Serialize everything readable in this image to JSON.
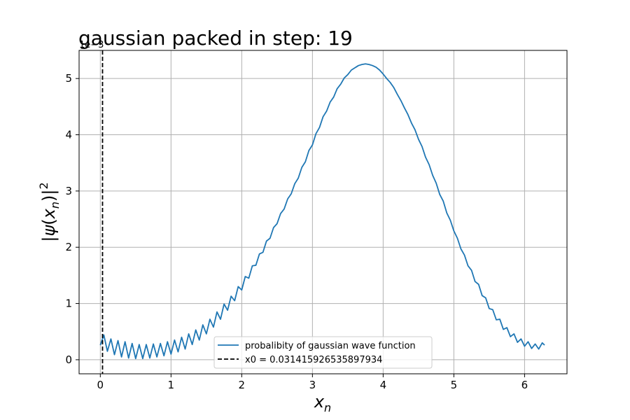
{
  "chart_data": {
    "type": "line",
    "title": "gaussian packed in step: 19",
    "xlabel": "x_n",
    "ylabel": "|ψ(x_n)|^2",
    "y_offset_label": "1e−3",
    "xlim": [
      -0.3,
      6.6
    ],
    "ylim": [
      -0.25,
      5.5
    ],
    "xticks": [
      0,
      1,
      2,
      3,
      4,
      5,
      6
    ],
    "yticks": [
      0,
      1,
      2,
      3,
      4,
      5
    ],
    "grid": true,
    "legend_position": "lower-center",
    "series": [
      {
        "name": "probalibity of gaussian wave function",
        "color": "#1f77b4",
        "style": "solid",
        "x": [
          0.0,
          0.05,
          0.1,
          0.15,
          0.2,
          0.25,
          0.3,
          0.35,
          0.4,
          0.45,
          0.5,
          0.55,
          0.6,
          0.65,
          0.7,
          0.75,
          0.8,
          0.85,
          0.9,
          0.95,
          1.0,
          1.05,
          1.1,
          1.15,
          1.2,
          1.25,
          1.3,
          1.35,
          1.4,
          1.45,
          1.5,
          1.55,
          1.6,
          1.65,
          1.7,
          1.75,
          1.8,
          1.85,
          1.9,
          1.95,
          2.0,
          2.05,
          2.1,
          2.15,
          2.2,
          2.25,
          2.3,
          2.35,
          2.4,
          2.45,
          2.5,
          2.55,
          2.6,
          2.65,
          2.7,
          2.75,
          2.8,
          2.85,
          2.9,
          2.95,
          3.0,
          3.05,
          3.1,
          3.15,
          3.2,
          3.25,
          3.3,
          3.35,
          3.4,
          3.45,
          3.5,
          3.55,
          3.6,
          3.65,
          3.7,
          3.75,
          3.8,
          3.85,
          3.9,
          3.95,
          4.0,
          4.05,
          4.1,
          4.15,
          4.2,
          4.25,
          4.3,
          4.35,
          4.4,
          4.45,
          4.5,
          4.55,
          4.6,
          4.65,
          4.7,
          4.75,
          4.8,
          4.85,
          4.9,
          4.95,
          5.0,
          5.05,
          5.1,
          5.15,
          5.2,
          5.25,
          5.3,
          5.35,
          5.4,
          5.45,
          5.5,
          5.55,
          5.6,
          5.65,
          5.7,
          5.75,
          5.8,
          5.85,
          5.9,
          5.95,
          6.0,
          6.05,
          6.1,
          6.15,
          6.2,
          6.25,
          6.283
        ],
        "y": [
          0.26,
          0.44,
          0.15,
          0.37,
          0.09,
          0.34,
          0.05,
          0.32,
          0.03,
          0.29,
          0.02,
          0.27,
          0.02,
          0.27,
          0.03,
          0.28,
          0.05,
          0.29,
          0.07,
          0.32,
          0.1,
          0.35,
          0.14,
          0.4,
          0.19,
          0.46,
          0.27,
          0.53,
          0.35,
          0.62,
          0.46,
          0.72,
          0.58,
          0.85,
          0.72,
          0.99,
          0.88,
          1.13,
          1.05,
          1.3,
          1.24,
          1.48,
          1.45,
          1.67,
          1.68,
          1.88,
          1.91,
          2.11,
          2.16,
          2.35,
          2.42,
          2.6,
          2.68,
          2.86,
          2.95,
          3.13,
          3.23,
          3.42,
          3.52,
          3.72,
          3.82,
          4.02,
          4.13,
          4.32,
          4.42,
          4.58,
          4.67,
          4.82,
          4.9,
          5.01,
          5.07,
          5.15,
          5.19,
          5.23,
          5.25,
          5.26,
          5.25,
          5.23,
          5.2,
          5.15,
          5.08,
          5.0,
          4.93,
          4.84,
          4.72,
          4.61,
          4.48,
          4.36,
          4.21,
          4.09,
          3.92,
          3.79,
          3.6,
          3.47,
          3.28,
          3.14,
          2.94,
          2.82,
          2.61,
          2.48,
          2.29,
          2.16,
          1.97,
          1.86,
          1.67,
          1.59,
          1.39,
          1.34,
          1.14,
          1.1,
          0.91,
          0.89,
          0.71,
          0.72,
          0.54,
          0.57,
          0.41,
          0.46,
          0.31,
          0.37,
          0.24,
          0.32,
          0.2,
          0.28,
          0.19,
          0.3,
          0.26
        ]
      },
      {
        "name": "x0 = 0.031415926535897934",
        "color": "#000000",
        "style": "dashed",
        "vline_x": 0.031415926535897934
      }
    ]
  }
}
